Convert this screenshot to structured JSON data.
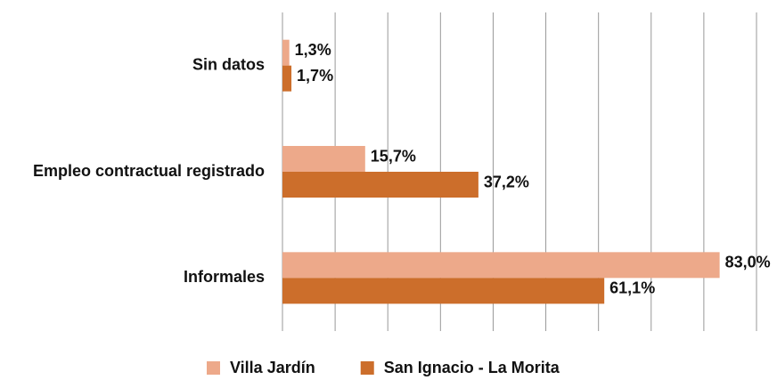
{
  "chart_data": {
    "type": "barh",
    "categories": [
      "Sin datos",
      "Empleo contractual registrado",
      "Informales"
    ],
    "series": [
      {
        "name": "Villa Jardín",
        "color": "#eda98a",
        "values": [
          1.3,
          15.7,
          83.0
        ],
        "value_labels": [
          "1,3%",
          "15,7%",
          "83,0%"
        ]
      },
      {
        "name": "San Ignacio - La Morita",
        "color": "#cc6e2b",
        "values": [
          1.7,
          37.2,
          61.1
        ],
        "value_labels": [
          "1,7%",
          "37,2%",
          "61,1%"
        ]
      }
    ],
    "xlim": [
      0,
      90
    ],
    "xticks": [
      0,
      10,
      20,
      30,
      40,
      50,
      60,
      70,
      80,
      90
    ],
    "grid": true,
    "legend": "bottom"
  }
}
